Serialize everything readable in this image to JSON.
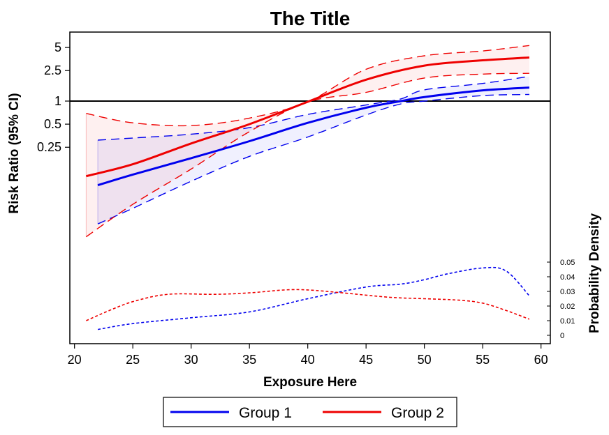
{
  "chart_data": {
    "type": "line",
    "title": "The Title",
    "xlabel": "Exposure Here",
    "ylabel": "Risk Ratio (95% CI)",
    "y2label": "Probability Density",
    "xlim": [
      19.6,
      60.8
    ],
    "xticks": [
      20,
      25,
      30,
      35,
      40,
      45,
      50,
      55,
      60
    ],
    "yticks": [
      5,
      2.5,
      1,
      0.5,
      0.25
    ],
    "ytick_labels": [
      "5",
      "2.5",
      "1",
      "0.5",
      "0.25"
    ],
    "y_scale": "log",
    "reference_line": 1,
    "y2ticks": [
      0,
      0.01,
      0.02,
      0.03,
      0.04,
      0.05
    ],
    "y2tick_labels": [
      "0",
      "0.01",
      "0.02",
      "0.03",
      "0.04",
      "0.05"
    ],
    "legend": {
      "placement": "bottom",
      "entries": [
        "Group 1",
        "Group 2"
      ]
    },
    "colors": {
      "Group 1": "#0000ee",
      "Group 2": "#ee0000"
    },
    "series": [
      {
        "name": "Group 1",
        "x": [
          22,
          25,
          30,
          35,
          40,
          45,
          48,
          50,
          55,
          59
        ],
        "rr": [
          0.08,
          0.11,
          0.18,
          0.3,
          0.52,
          0.82,
          1.0,
          1.13,
          1.38,
          1.5
        ],
        "lower": [
          0.025,
          0.04,
          0.09,
          0.19,
          0.34,
          0.66,
          0.92,
          1.0,
          1.18,
          1.22
        ],
        "upper": [
          0.31,
          0.33,
          0.37,
          0.45,
          0.67,
          0.89,
          1.07,
          1.4,
          1.7,
          2.1
        ]
      },
      {
        "name": "Group 2",
        "x": [
          21,
          25,
          30,
          35,
          40,
          45,
          50,
          55,
          59
        ],
        "rr": [
          0.105,
          0.15,
          0.28,
          0.5,
          0.98,
          1.9,
          2.9,
          3.4,
          3.7
        ],
        "lower": [
          0.017,
          0.045,
          0.13,
          0.4,
          0.97,
          1.3,
          2.0,
          2.25,
          2.3
        ],
        "upper": [
          0.69,
          0.52,
          0.48,
          0.6,
          0.98,
          2.6,
          3.9,
          4.5,
          5.3
        ]
      }
    ],
    "density": [
      {
        "name": "Group 1",
        "x": [
          22,
          25,
          30,
          35,
          40,
          45,
          48,
          50,
          52,
          55,
          57,
          59
        ],
        "y": [
          0.004,
          0.008,
          0.012,
          0.016,
          0.025,
          0.033,
          0.035,
          0.038,
          0.042,
          0.046,
          0.044,
          0.027
        ]
      },
      {
        "name": "Group 2",
        "x": [
          21,
          23,
          25,
          28,
          32,
          35,
          38,
          40,
          43,
          47,
          50,
          53,
          55,
          57,
          59
        ],
        "y": [
          0.01,
          0.017,
          0.023,
          0.028,
          0.028,
          0.029,
          0.031,
          0.031,
          0.029,
          0.026,
          0.025,
          0.024,
          0.022,
          0.017,
          0.011
        ]
      }
    ]
  }
}
